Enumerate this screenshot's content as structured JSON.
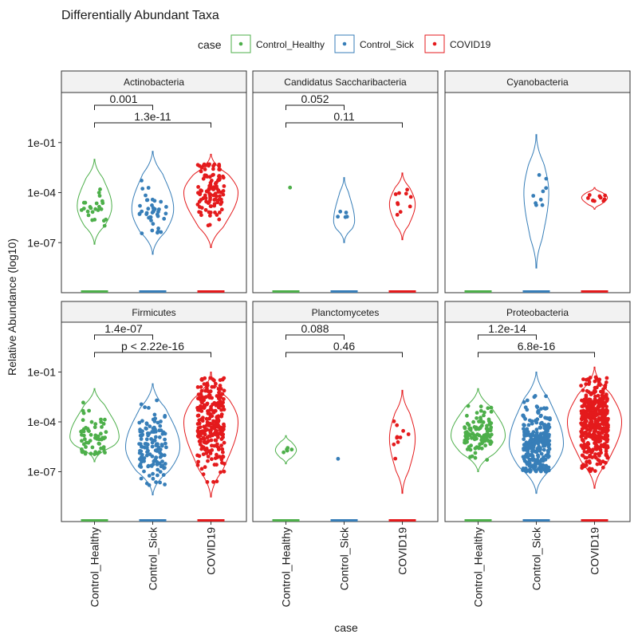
{
  "chart_data": {
    "type": "violin",
    "title": "Differentially Abundant Taxa",
    "xlabel": "case",
    "ylabel": "Relative Abundance (log10)",
    "y_scale": "log10",
    "ylim": [
      1e-10,
      100
    ],
    "y_ticks": [
      {
        "value": 0.1,
        "label": "1e-01"
      },
      {
        "value": 0.0001,
        "label": "1e-04"
      },
      {
        "value": 1e-07,
        "label": "1e-07"
      }
    ],
    "legend": {
      "title": "case",
      "position": "top",
      "items": [
        "Control_Healthy",
        "Control_Sick",
        "COVID19"
      ]
    },
    "colors": {
      "Control_Healthy": "#4daf4a",
      "Control_Sick": "#377eb8",
      "COVID19": "#e41a1c"
    },
    "categories": [
      "Control_Healthy",
      "Control_Sick",
      "COVID19"
    ],
    "grid": false,
    "facets": [
      {
        "name": "Actinobacteria",
        "groups": [
          {
            "case": "Control_Healthy",
            "n": 24,
            "median": 1.5e-05,
            "min": 1e-06,
            "max": 0.002,
            "violin_min": 8e-08,
            "violin_max": 0.01
          },
          {
            "case": "Control_Sick",
            "n": 40,
            "median": 1e-05,
            "min": 3e-07,
            "max": 0.002,
            "violin_min": 2e-08,
            "violin_max": 0.03
          },
          {
            "case": "COVID19",
            "n": 110,
            "median": 0.0001,
            "min": 3e-07,
            "max": 0.006,
            "violin_min": 5e-08,
            "violin_max": 0.02
          }
        ],
        "comparisons": [
          {
            "groups": [
              "Control_Healthy",
              "Control_Sick"
            ],
            "label": "0.001"
          },
          {
            "groups": [
              "Control_Healthy",
              "COVID19"
            ],
            "label": "1.3e-11"
          }
        ]
      },
      {
        "name": "Candidatus Saccharibacteria",
        "groups": [
          {
            "case": "Control_Healthy",
            "n": 1,
            "median": 0.0002,
            "min": 0.0002,
            "max": 0.0002,
            "violin_min": 0.0002,
            "violin_max": 0.0002
          },
          {
            "case": "Control_Sick",
            "n": 5,
            "median": 2e-06,
            "min": 4e-07,
            "max": 7e-05,
            "violin_min": 1e-07,
            "violin_max": 0.0008
          },
          {
            "case": "COVID19",
            "n": 10,
            "median": 2e-05,
            "min": 5e-07,
            "max": 0.0002,
            "violin_min": 1.5e-07,
            "violin_max": 0.0015
          }
        ],
        "comparisons": [
          {
            "groups": [
              "Control_Healthy",
              "Control_Sick"
            ],
            "label": "0.052"
          },
          {
            "groups": [
              "Control_Healthy",
              "COVID19"
            ],
            "label": "0.11"
          }
        ]
      },
      {
        "name": "Cyanobacteria",
        "groups": [
          {
            "case": "Control_Healthy",
            "n": 0
          },
          {
            "case": "Control_Sick",
            "n": 9,
            "median": 0.0001,
            "min": 1.2e-06,
            "max": 0.0015,
            "violin_min": 3e-09,
            "violin_max": 0.3
          },
          {
            "case": "COVID19",
            "n": 10,
            "median": 5e-05,
            "min": 1.5e-05,
            "max": 0.00015,
            "violin_min": 1e-05,
            "violin_max": 0.0002
          }
        ],
        "comparisons": []
      },
      {
        "name": "Firmicutes",
        "groups": [
          {
            "case": "Control_Healthy",
            "n": 60,
            "median": 1.2e-05,
            "min": 1e-06,
            "max": 0.0015,
            "violin_min": 4e-07,
            "violin_max": 0.01
          },
          {
            "case": "Control_Sick",
            "n": 130,
            "median": 3e-06,
            "min": 1.5e-08,
            "max": 0.003,
            "violin_min": 4e-09,
            "violin_max": 0.02
          },
          {
            "case": "COVID19",
            "n": 250,
            "median": 0.0001,
            "min": 2e-08,
            "max": 0.05,
            "violin_min": 3e-09,
            "violin_max": 0.1
          }
        ],
        "comparisons": [
          {
            "groups": [
              "Control_Healthy",
              "Control_Sick"
            ],
            "label": "1.4e-07"
          },
          {
            "groups": [
              "Control_Healthy",
              "COVID19"
            ],
            "label": "p < 2.22e-16"
          }
        ]
      },
      {
        "name": "Planctomycetes",
        "groups": [
          {
            "case": "Control_Healthy",
            "n": 5,
            "median": 2e-06,
            "min": 8e-07,
            "max": 6e-06,
            "violin_min": 3e-07,
            "violin_max": 1.5e-05
          },
          {
            "case": "Control_Sick",
            "n": 1,
            "median": 6e-07,
            "min": 6e-07,
            "max": 6e-07,
            "violin_min": 6e-07,
            "violin_max": 6e-07
          },
          {
            "case": "COVID19",
            "n": 10,
            "median": 1e-05,
            "min": 5e-07,
            "max": 0.0002,
            "violin_min": 5e-09,
            "violin_max": 0.008
          }
        ],
        "comparisons": [
          {
            "groups": [
              "Control_Healthy",
              "Control_Sick"
            ],
            "label": "0.088"
          },
          {
            "groups": [
              "Control_Healthy",
              "COVID19"
            ],
            "label": "0.46"
          }
        ]
      },
      {
        "name": "Proteobacteria",
        "groups": [
          {
            "case": "Control_Healthy",
            "n": 110,
            "median": 1.5e-05,
            "min": 5e-07,
            "max": 0.001,
            "violin_min": 1e-07,
            "violin_max": 0.01
          },
          {
            "case": "Control_Sick",
            "n": 260,
            "median": 5e-06,
            "min": 1e-07,
            "max": 0.03,
            "violin_min": 5e-09,
            "violin_max": 0.1
          },
          {
            "case": "COVID19",
            "n": 420,
            "median": 0.0001,
            "min": 1e-07,
            "max": 0.05,
            "violin_min": 1e-08,
            "violin_max": 0.2
          }
        ],
        "comparisons": [
          {
            "groups": [
              "Control_Healthy",
              "Control_Sick"
            ],
            "label": "1.2e-14"
          },
          {
            "groups": [
              "Control_Healthy",
              "COVID19"
            ],
            "label": "6.8e-16"
          }
        ]
      }
    ]
  }
}
